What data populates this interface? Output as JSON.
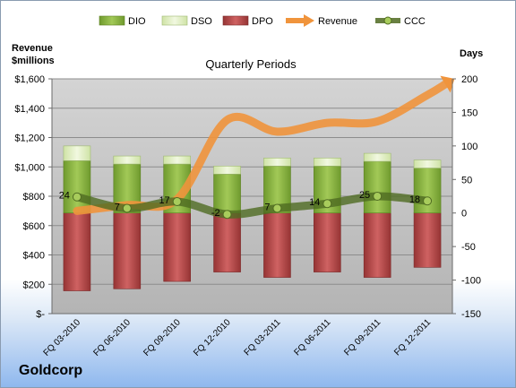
{
  "chart_data": {
    "type": "bar",
    "subtitle": "Quarterly Periods",
    "company": "Goldcorp",
    "left_axis_title": [
      "Revenue",
      "$millions"
    ],
    "right_axis_title": "Days",
    "categories": [
      "FQ 03-2010",
      "FQ 06-2010",
      "FQ 09-2010",
      "FQ 12-2010",
      "FQ 03-2011",
      "FQ 06-2011",
      "FQ 09-2011",
      "FQ 12-2011"
    ],
    "left_axis": {
      "ylim": [
        0,
        1600
      ],
      "step": 200,
      "tick_labels": [
        "$-",
        "$200",
        "$400",
        "$600",
        "$800",
        "$1,000",
        "$1,200",
        "$1,400",
        "$1,600"
      ]
    },
    "right_axis": {
      "ylim": [
        -150,
        200
      ],
      "step": 50,
      "tick_labels": [
        "-150",
        "-100",
        "-50",
        "0",
        "50",
        "100",
        "150",
        "200"
      ]
    },
    "legend": {
      "placement": "top",
      "entries": [
        "DIO",
        "DSO",
        "DPO",
        "Revenue",
        "CCC"
      ]
    },
    "series": [
      {
        "name": "DIO",
        "axis": "right",
        "kind": "stacked-bar",
        "values": [
          78,
          73,
          73,
          58,
          70,
          70,
          77,
          67
        ]
      },
      {
        "name": "DSO",
        "axis": "right",
        "kind": "stacked-bar",
        "values": [
          22,
          12,
          12,
          12,
          12,
          12,
          12,
          12
        ]
      },
      {
        "name": "DPO",
        "axis": "right",
        "kind": "stacked-bar-negative",
        "values": [
          -116,
          -113,
          -102,
          -88,
          -96,
          -88,
          -96,
          -81
        ]
      },
      {
        "name": "Revenue",
        "axis": "left",
        "kind": "arrow-line",
        "values": [
          700,
          740,
          780,
          1320,
          1240,
          1300,
          1310,
          1490
        ]
      },
      {
        "name": "CCC",
        "axis": "right",
        "kind": "line",
        "values": [
          24,
          7,
          17,
          -2,
          7,
          14,
          25,
          18
        ]
      }
    ],
    "data_labels": [
      "24",
      "7",
      "17",
      "-2",
      "7",
      "14",
      "25",
      "18"
    ],
    "grid": true,
    "colors": {
      "dio": "#8fb544",
      "dso": "#e2efc6",
      "dpo": "#b84848",
      "revenue": "#f0943c",
      "ccc": "#5c7a2c",
      "plot_bg": "#c0c0c0"
    }
  }
}
